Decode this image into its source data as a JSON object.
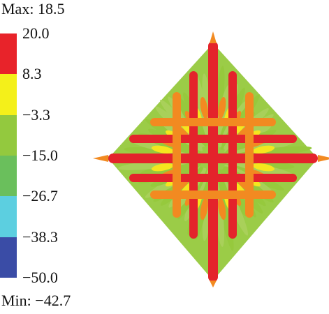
{
  "legend": {
    "max_label": "Max: 18.5",
    "min_label": "Min: −42.7",
    "ticks": [
      "20.0",
      "8.3",
      "−3.3",
      "−15.0",
      "−26.7",
      "−38.3",
      "−50.0"
    ],
    "bands": [
      {
        "color": "#e8232a"
      },
      {
        "color": "#f4f01a"
      },
      {
        "color": "#93c93e"
      },
      {
        "color": "#6abf5c"
      },
      {
        "color": "#5ccfe0"
      },
      {
        "color": "#3a4ca6"
      }
    ]
  },
  "pattern": {
    "name": "radiation-pattern",
    "colors": {
      "red": "#e4232b",
      "orange": "#f28a21",
      "yellow": "#f5e61e",
      "green": "#96c93d",
      "light_green": "#a9d05a"
    }
  }
}
